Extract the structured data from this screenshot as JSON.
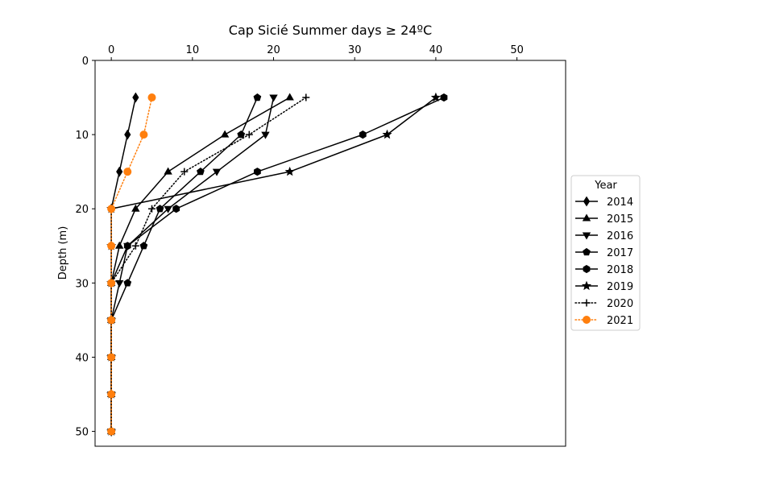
{
  "chart_data": {
    "type": "line",
    "title": "Cap Sicié Summer days ≥ 24ºC",
    "xlabel": "",
    "ylabel": "Depth (m)",
    "x_axis_position": "top",
    "y_inverted": true,
    "xlim": [
      -2,
      56
    ],
    "ylim": [
      0,
      52
    ],
    "x_ticks": [
      0,
      10,
      20,
      30,
      40,
      50
    ],
    "y_ticks": [
      0,
      10,
      20,
      30,
      40,
      50
    ],
    "grid": false,
    "legend": {
      "title": "Year",
      "placement": "center-right outside"
    },
    "depths": [
      5,
      10,
      15,
      20,
      25,
      30,
      35,
      40,
      45,
      50
    ],
    "series": [
      {
        "name": "2014",
        "marker": "diamond",
        "line": "solid",
        "color": "#000000",
        "values": [
          3,
          2,
          1,
          0,
          0,
          0,
          0,
          0,
          0,
          0
        ]
      },
      {
        "name": "2015",
        "marker": "triangle-up",
        "line": "solid",
        "color": "#000000",
        "values": [
          22,
          14,
          7,
          3,
          1,
          0,
          0,
          0,
          0,
          0
        ]
      },
      {
        "name": "2016",
        "marker": "triangle-down",
        "line": "solid",
        "color": "#000000",
        "values": [
          20,
          19,
          13,
          7,
          2,
          1,
          0,
          0,
          0,
          0
        ]
      },
      {
        "name": "2017",
        "marker": "pentagon",
        "line": "solid",
        "color": "#000000",
        "values": [
          18,
          16,
          11,
          6,
          4,
          2,
          0,
          0,
          0,
          0
        ]
      },
      {
        "name": "2018",
        "marker": "hexagon",
        "line": "solid",
        "color": "#000000",
        "values": [
          41,
          31,
          18,
          8,
          2,
          0,
          0,
          0,
          0,
          0
        ]
      },
      {
        "name": "2019",
        "marker": "star",
        "line": "solid",
        "color": "#000000",
        "values": [
          40,
          34,
          22,
          0,
          0,
          0,
          0,
          0,
          0,
          0
        ]
      },
      {
        "name": "2020",
        "marker": "plus",
        "line": "dotted",
        "color": "#000000",
        "values": [
          24,
          17,
          9,
          5,
          3,
          0,
          0,
          0,
          0,
          0
        ]
      },
      {
        "name": "2021",
        "marker": "circle",
        "line": "dotted",
        "color": "#ff7f0e",
        "values": [
          5,
          4,
          2,
          0,
          0,
          0,
          0,
          0,
          0,
          0
        ]
      }
    ]
  }
}
